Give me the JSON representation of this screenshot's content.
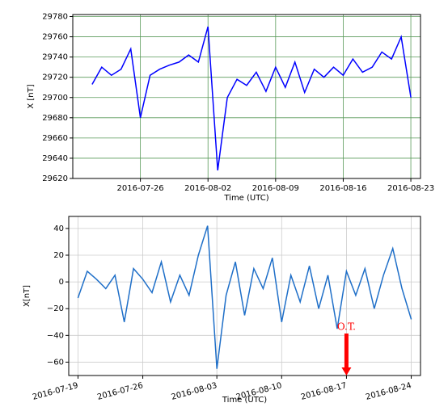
{
  "chart_data": [
    {
      "type": "line",
      "x_label": "Time (UTC)",
      "y_label": "X [nT]",
      "grid": true,
      "grid_color": "#5a9a5a",
      "xlim": [
        "2016-07-19",
        "2016-08-24"
      ],
      "xticks": [
        "2016-07-26",
        "2016-08-02",
        "2016-08-09",
        "2016-08-16",
        "2016-08-23"
      ],
      "ylim": [
        29620,
        29782
      ],
      "yticks": [
        29620,
        29640,
        29660,
        29680,
        29700,
        29720,
        29740,
        29760,
        29780
      ],
      "x": [
        "2016-07-21",
        "2016-07-22",
        "2016-07-23",
        "2016-07-24",
        "2016-07-25",
        "2016-07-26",
        "2016-07-27",
        "2016-07-28",
        "2016-07-29",
        "2016-07-30",
        "2016-07-31",
        "2016-08-01",
        "2016-08-02",
        "2016-08-03",
        "2016-08-04",
        "2016-08-05",
        "2016-08-06",
        "2016-08-07",
        "2016-08-08",
        "2016-08-09",
        "2016-08-10",
        "2016-08-11",
        "2016-08-12",
        "2016-08-13",
        "2016-08-14",
        "2016-08-15",
        "2016-08-16",
        "2016-08-17",
        "2016-08-18",
        "2016-08-19",
        "2016-08-20",
        "2016-08-21",
        "2016-08-22",
        "2016-08-23"
      ],
      "series": [
        {
          "color": "#0000ff",
          "values": [
            29713,
            29730,
            29722,
            29728,
            29748,
            29680,
            29722,
            29728,
            29732,
            29735,
            29742,
            29735,
            29770,
            29628,
            29700,
            29718,
            29712,
            29725,
            29706,
            29730,
            29710,
            29735,
            29705,
            29728,
            29720,
            29730,
            29722,
            29738,
            29725,
            29730,
            29745,
            29738,
            29760,
            29700
          ]
        }
      ]
    },
    {
      "type": "line",
      "x_label": "Time (UTC)",
      "y_label": "X[nT]",
      "grid": true,
      "grid_color": "#cccccc",
      "xtick_rotation": -15,
      "xlim": [
        "2016-07-18",
        "2016-08-25"
      ],
      "xticks": [
        "2016-07-19",
        "2016-07-26",
        "2016-08-03",
        "2016-08-10",
        "2016-08-17",
        "2016-08-24"
      ],
      "ylim": [
        -70,
        49
      ],
      "yticks": [
        {
          "value": -60,
          "label": "−60"
        },
        {
          "value": -40,
          "label": "−40"
        },
        {
          "value": -20,
          "label": "−20"
        },
        0,
        20,
        40
      ],
      "x": [
        "2016-07-19",
        "2016-07-20",
        "2016-07-21",
        "2016-07-22",
        "2016-07-23",
        "2016-07-24",
        "2016-07-25",
        "2016-07-26",
        "2016-07-27",
        "2016-07-28",
        "2016-07-29",
        "2016-07-30",
        "2016-07-31",
        "2016-08-01",
        "2016-08-02",
        "2016-08-03",
        "2016-08-04",
        "2016-08-05",
        "2016-08-06",
        "2016-08-07",
        "2016-08-08",
        "2016-08-09",
        "2016-08-10",
        "2016-08-11",
        "2016-08-12",
        "2016-08-13",
        "2016-08-14",
        "2016-08-15",
        "2016-08-16",
        "2016-08-17",
        "2016-08-18",
        "2016-08-19",
        "2016-08-20",
        "2016-08-21",
        "2016-08-22",
        "2016-08-23",
        "2016-08-24"
      ],
      "series": [
        {
          "color": "#1f6fc8",
          "values": [
            -12,
            8,
            2,
            -5,
            5,
            -30,
            10,
            2,
            -8,
            15,
            -15,
            5,
            -10,
            20,
            42,
            -65,
            -10,
            15,
            -25,
            10,
            -5,
            18,
            -30,
            5,
            -15,
            12,
            -20,
            5,
            -35,
            8,
            -10,
            10,
            -20,
            5,
            25,
            -5,
            -28
          ]
        }
      ],
      "annotations": [
        {
          "text": "O.T.",
          "x": "2016-08-17",
          "y": -70,
          "color": "#ff0000"
        }
      ]
    }
  ]
}
